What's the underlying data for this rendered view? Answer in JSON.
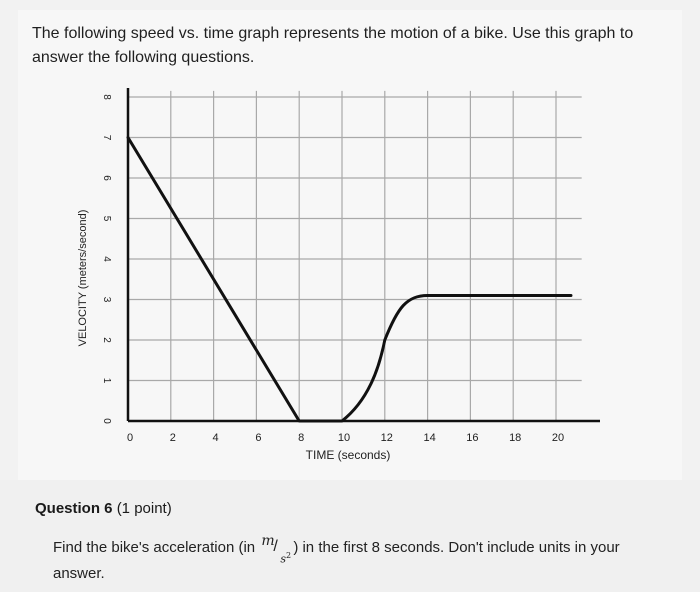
{
  "intro_text": "The following speed vs. time graph represents the motion of a bike. Use this graph to answer the following questions.",
  "question": {
    "title": "Question 6",
    "points": "(1 point)",
    "text_before": "Find the bike's acceleration (in ",
    "unit_num": "m",
    "unit_den": "s",
    "unit_exp": "2",
    "text_after": ") in the first 8 seconds. Don't include units in your answer."
  },
  "chart_data": {
    "type": "line",
    "xlabel": "TIME (seconds)",
    "ylabel": "VELOCITY (meters/second)",
    "xlim": [
      0,
      21
    ],
    "ylim": [
      0,
      8
    ],
    "x_ticks": [
      "0",
      "2",
      "4",
      "6",
      "8",
      "10",
      "12",
      "14",
      "16",
      "18",
      "20"
    ],
    "y_ticks": [
      "0",
      "1",
      "2",
      "3",
      "4",
      "5",
      "6",
      "7",
      "8"
    ],
    "grid": true,
    "series": [
      {
        "x": [
          0,
          8,
          10,
          11.2,
          12,
          12.6,
          13.4,
          14,
          20.7
        ],
        "y": [
          7,
          0,
          0,
          0.5,
          2,
          2.8,
          3.1,
          3.1,
          3.1
        ]
      }
    ]
  }
}
